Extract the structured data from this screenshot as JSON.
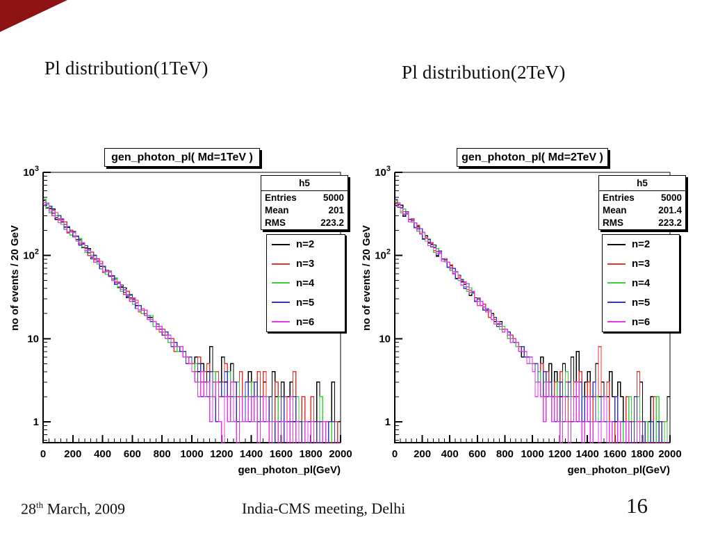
{
  "slide": {
    "heading_left": "Pl distribution(1TeV)",
    "heading_right": "Pl distribution(2TeV)",
    "corner_color": "#8e1414",
    "footer": {
      "date_day": "28",
      "date_sup": "th",
      "date_rest": " March, 2009",
      "center": "India-CMS meeting, Delhi",
      "page": "16"
    }
  },
  "chart_data": [
    {
      "type": "line",
      "title": "gen_photon_pl( Md=1TeV )",
      "xlabel": "gen_photon_pl(GeV)",
      "ylabel": "no of events / 20 GeV",
      "xlim": [
        0,
        2000
      ],
      "ylog_min": 0.56,
      "ylog_max": 1000,
      "bin_width_gev": 20,
      "grid": "off",
      "legend_position": "right",
      "x_tick_labels": [
        "0",
        "200",
        "400",
        "600",
        "800",
        "1000",
        "1200",
        "1400",
        "1600",
        "1800",
        "2000"
      ],
      "y_ticks": [
        {
          "v": 1,
          "t": "1",
          "e": ""
        },
        {
          "v": 10,
          "t": "10",
          "e": ""
        },
        {
          "v": 100,
          "t": "10",
          "e": "2"
        },
        {
          "v": 1000,
          "t": "10",
          "e": "3"
        }
      ],
      "stats": {
        "name": "h5",
        "entries_label": "Entries",
        "entries": "5000",
        "mean_label": "Mean",
        "mean": "201",
        "rms_label": "RMS",
        "rms": "223.2"
      },
      "series": [
        {
          "name": "n=2",
          "color": "#000000",
          "values": [
            460,
            372,
            369,
            363,
            271,
            275,
            271,
            220,
            217,
            176,
            195,
            156,
            154,
            124,
            123,
            121,
            91,
            92,
            91,
            74,
            73,
            59,
            65,
            52,
            52,
            41,
            42,
            41,
            31,
            31,
            30,
            25,
            25,
            20,
            22,
            18,
            18,
            14,
            14,
            14,
            11,
            11,
            11,
            9,
            9,
            7,
            8,
            6,
            6,
            5,
            5,
            6,
            4,
            5,
            3,
            4,
            8,
            3,
            4,
            2,
            6,
            3,
            2,
            5,
            3,
            2,
            4,
            2,
            3,
            4,
            2,
            3,
            4,
            2,
            3,
            1,
            2,
            4,
            2,
            1,
            3,
            1,
            2,
            3,
            1,
            0,
            1,
            2,
            1,
            0,
            1,
            0,
            3,
            1,
            0,
            1,
            0,
            3,
            0,
            1
          ]
        },
        {
          "name": "n=3",
          "color": "#e53531",
          "values": [
            412,
            424,
            362,
            300,
            328,
            267,
            259,
            254,
            186,
            201,
            172,
            169,
            138,
            141,
            121,
            100,
            110,
            89,
            87,
            85,
            62,
            67,
            57,
            56,
            47,
            47,
            41,
            34,
            37,
            30,
            29,
            29,
            21,
            23,
            20,
            19,
            16,
            16,
            14,
            12,
            13,
            11,
            10,
            10,
            7,
            8,
            7,
            7,
            6,
            6,
            5,
            4,
            6,
            3,
            4,
            5,
            2,
            3,
            4,
            2,
            3,
            5,
            2,
            3,
            1,
            2,
            4,
            2,
            1,
            3,
            2,
            1,
            4,
            2,
            4,
            1,
            2,
            1,
            3,
            1,
            0,
            2,
            1,
            0,
            4,
            1,
            0,
            2,
            0,
            1,
            2,
            0,
            1,
            0,
            0,
            1,
            0,
            0,
            1,
            0
          ]
        },
        {
          "name": "n=4",
          "color": "#35d13a",
          "values": [
            477,
            380,
            326,
            343,
            301,
            297,
            236,
            234,
            222,
            176,
            191,
            151,
            160,
            127,
            109,
            114,
            101,
            99,
            79,
            79,
            74,
            59,
            64,
            50,
            54,
            42,
            37,
            38,
            34,
            33,
            26,
            27,
            25,
            20,
            22,
            17,
            19,
            14,
            13,
            14,
            12,
            12,
            9,
            9,
            9,
            7,
            8,
            6,
            6,
            5,
            4,
            5,
            3,
            4,
            2,
            3,
            2,
            4,
            1,
            3,
            2,
            2,
            4,
            1,
            2,
            3,
            1,
            2,
            2,
            1,
            3,
            1,
            2,
            1,
            2,
            2,
            1,
            0,
            1,
            2,
            1,
            0,
            1,
            1,
            0,
            2,
            0,
            1,
            0,
            0,
            1,
            0,
            0,
            2,
            0,
            0,
            1,
            0,
            0,
            0
          ]
        },
        {
          "name": "n=5",
          "color": "#3734b5",
          "values": [
            399,
            412,
            391,
            323,
            283,
            303,
            251,
            206,
            222,
            195,
            167,
            172,
            133,
            137,
            131,
            108,
            95,
            101,
            84,
            69,
            74,
            65,
            56,
            57,
            45,
            46,
            44,
            36,
            32,
            34,
            28,
            23,
            25,
            22,
            19,
            19,
            16,
            16,
            15,
            13,
            11,
            12,
            10,
            8,
            9,
            8,
            7,
            7,
            5,
            6,
            4,
            3,
            5,
            2,
            3,
            2,
            4,
            2,
            1,
            3,
            2,
            4,
            1,
            2,
            3,
            1,
            2,
            1,
            3,
            1,
            2,
            3,
            1,
            2,
            1,
            1,
            2,
            1,
            0,
            1,
            2,
            0,
            1,
            1,
            2,
            0,
            1,
            0,
            1,
            1,
            0,
            1,
            0,
            1,
            0,
            0,
            1,
            1,
            0,
            0
          ]
        },
        {
          "name": "n=6",
          "color": "#e438e4",
          "values": [
            434,
            428,
            340,
            350,
            289,
            248,
            276,
            238,
            192,
            191,
            188,
            149,
            145,
            143,
            114,
            117,
            97,
            83,
            92,
            80,
            64,
            64,
            63,
            50,
            49,
            48,
            39,
            39,
            33,
            28,
            31,
            27,
            22,
            22,
            22,
            17,
            17,
            16,
            13,
            14,
            12,
            10,
            11,
            9,
            8,
            8,
            8,
            6,
            6,
            5,
            4,
            3,
            2,
            4,
            2,
            3,
            1,
            2,
            3,
            1,
            0,
            2,
            1,
            3,
            1,
            0,
            2,
            1,
            1,
            2,
            1,
            2,
            0,
            1,
            2,
            1,
            0,
            1,
            1,
            0,
            1,
            1,
            0,
            2,
            0,
            1,
            0,
            0,
            1,
            0,
            1,
            0,
            0,
            0,
            1,
            0,
            0,
            0,
            0,
            0
          ]
        }
      ]
    },
    {
      "type": "line",
      "title": "gen_photon_pl( Md=2TeV )",
      "xlabel": "gen_photon_pl(GeV)",
      "ylabel": "no of events / 20 GeV",
      "xlim": [
        0,
        2000
      ],
      "ylog_min": 0.56,
      "ylog_max": 1000,
      "bin_width_gev": 20,
      "grid": "off",
      "legend_position": "right",
      "x_tick_labels": [
        "0",
        "200",
        "400",
        "600",
        "800",
        "1000",
        "1200",
        "1400",
        "1600",
        "1800",
        "2000"
      ],
      "y_ticks": [
        {
          "v": 1,
          "t": "1",
          "e": ""
        },
        {
          "v": 10,
          "t": "10",
          "e": ""
        },
        {
          "v": 100,
          "t": "10",
          "e": "2"
        },
        {
          "v": 1000,
          "t": "10",
          "e": "3"
        }
      ],
      "stats": {
        "name": "h5",
        "entries_label": "Entries",
        "entries": "5000",
        "mean_label": "Mean",
        "mean": "201.4",
        "rms_label": "RMS",
        "rms": "223.2"
      },
      "series": [
        {
          "name": "n=2",
          "color": "#000000",
          "values": [
            421,
            408,
            402,
            294,
            316,
            272,
            266,
            218,
            224,
            191,
            158,
            173,
            141,
            136,
            134,
            98,
            106,
            91,
            89,
            73,
            75,
            64,
            53,
            58,
            48,
            45,
            46,
            33,
            36,
            31,
            30,
            25,
            26,
            22,
            18,
            20,
            16,
            15,
            16,
            12,
            13,
            11,
            11,
            9,
            9,
            8,
            6,
            7,
            6,
            5,
            4,
            5,
            3,
            6,
            4,
            3,
            5,
            2,
            4,
            3,
            2,
            5,
            3,
            2,
            6,
            3,
            7,
            4,
            2,
            3,
            4,
            2,
            3,
            5,
            2,
            3,
            1,
            2,
            4,
            2,
            1,
            3,
            2,
            1,
            2,
            1,
            0,
            2,
            1,
            3,
            1,
            0,
            1,
            2,
            0,
            1,
            0,
            1,
            0,
            2
          ]
        },
        {
          "name": "n=3",
          "color": "#e53531",
          "values": [
            434,
            428,
            340,
            337,
            319,
            253,
            276,
            218,
            230,
            183,
            157,
            165,
            145,
            143,
            114,
            112,
            107,
            85,
            92,
            73,
            77,
            61,
            52,
            55,
            49,
            48,
            39,
            38,
            36,
            29,
            31,
            25,
            26,
            21,
            18,
            19,
            17,
            16,
            13,
            13,
            13,
            10,
            11,
            9,
            8,
            8,
            8,
            6,
            5,
            6,
            5,
            3,
            4,
            5,
            2,
            4,
            3,
            2,
            3,
            2,
            4,
            2,
            3,
            1,
            2,
            3,
            2,
            4,
            1,
            2,
            3,
            1,
            2,
            1,
            8,
            2,
            1,
            3,
            1,
            0,
            2,
            1,
            0,
            1,
            2,
            0,
            1,
            0,
            4,
            1,
            0,
            1,
            0,
            0,
            2,
            0,
            0,
            1,
            0,
            0
          ]
        },
        {
          "name": "n=4",
          "color": "#35d13a",
          "values": [
            460,
            380,
            326,
            363,
            313,
            253,
            251,
            247,
            196,
            191,
            188,
            149,
            154,
            127,
            109,
            121,
            105,
            85,
            84,
            83,
            66,
            64,
            63,
            50,
            52,
            42,
            37,
            41,
            35,
            29,
            28,
            28,
            23,
            23,
            21,
            17,
            18,
            14,
            13,
            14,
            13,
            10,
            10,
            10,
            8,
            7,
            7,
            7,
            5,
            5,
            4,
            3,
            4,
            2,
            3,
            2,
            3,
            1,
            2,
            3,
            1,
            2,
            4,
            2,
            1,
            2,
            3,
            1,
            2,
            1,
            2,
            1,
            1,
            2,
            1,
            2,
            2,
            1,
            0,
            1,
            2,
            1,
            1,
            0,
            1,
            2,
            0,
            1,
            2,
            0,
            0,
            1,
            0,
            1,
            0,
            2,
            0,
            0,
            1,
            0
          ]
        },
        {
          "name": "n=5",
          "color": "#3734b5",
          "values": [
            469,
            380,
            376,
            304,
            337,
            270,
            266,
            215,
            213,
            210,
            157,
            159,
            157,
            127,
            126,
            101,
            113,
            90,
            89,
            72,
            71,
            70,
            52,
            53,
            51,
            40,
            46,
            36,
            36,
            28,
            30,
            28,
            22,
            23,
            22,
            17,
            18,
            14,
            15,
            12,
            13,
            12,
            9,
            9,
            9,
            7,
            8,
            6,
            6,
            6,
            4,
            5,
            3,
            2,
            4,
            2,
            3,
            2,
            1,
            1,
            3,
            1,
            2,
            3,
            1,
            2,
            1,
            3,
            1,
            2,
            1,
            2,
            3,
            1,
            1,
            2,
            1,
            0,
            1,
            1,
            2,
            0,
            1,
            1,
            0,
            1,
            0,
            2,
            1,
            0,
            1,
            0,
            0,
            1,
            0,
            0,
            1,
            0,
            0,
            0
          ]
        },
        {
          "name": "n=6",
          "color": "#e438e4",
          "values": [
            391,
            420,
            369,
            317,
            325,
            253,
            261,
            247,
            205,
            180,
            191,
            159,
            131,
            140,
            123,
            106,
            109,
            85,
            87,
            83,
            69,
            60,
            64,
            53,
            44,
            47,
            42,
            36,
            37,
            29,
            25,
            28,
            24,
            21,
            22,
            17,
            15,
            16,
            14,
            12,
            13,
            11,
            9,
            10,
            9,
            7,
            7,
            7,
            5,
            6,
            4,
            2,
            3,
            2,
            1,
            3,
            2,
            1,
            2,
            1,
            0,
            2,
            1,
            0,
            2,
            1,
            3,
            1,
            0,
            1,
            2,
            0,
            1,
            1,
            0,
            1,
            2,
            0,
            1,
            0,
            0,
            1,
            0,
            0,
            1,
            0,
            0,
            0,
            1,
            0,
            0,
            0,
            0,
            0,
            0,
            0,
            0,
            0,
            0,
            0
          ]
        }
      ]
    }
  ]
}
